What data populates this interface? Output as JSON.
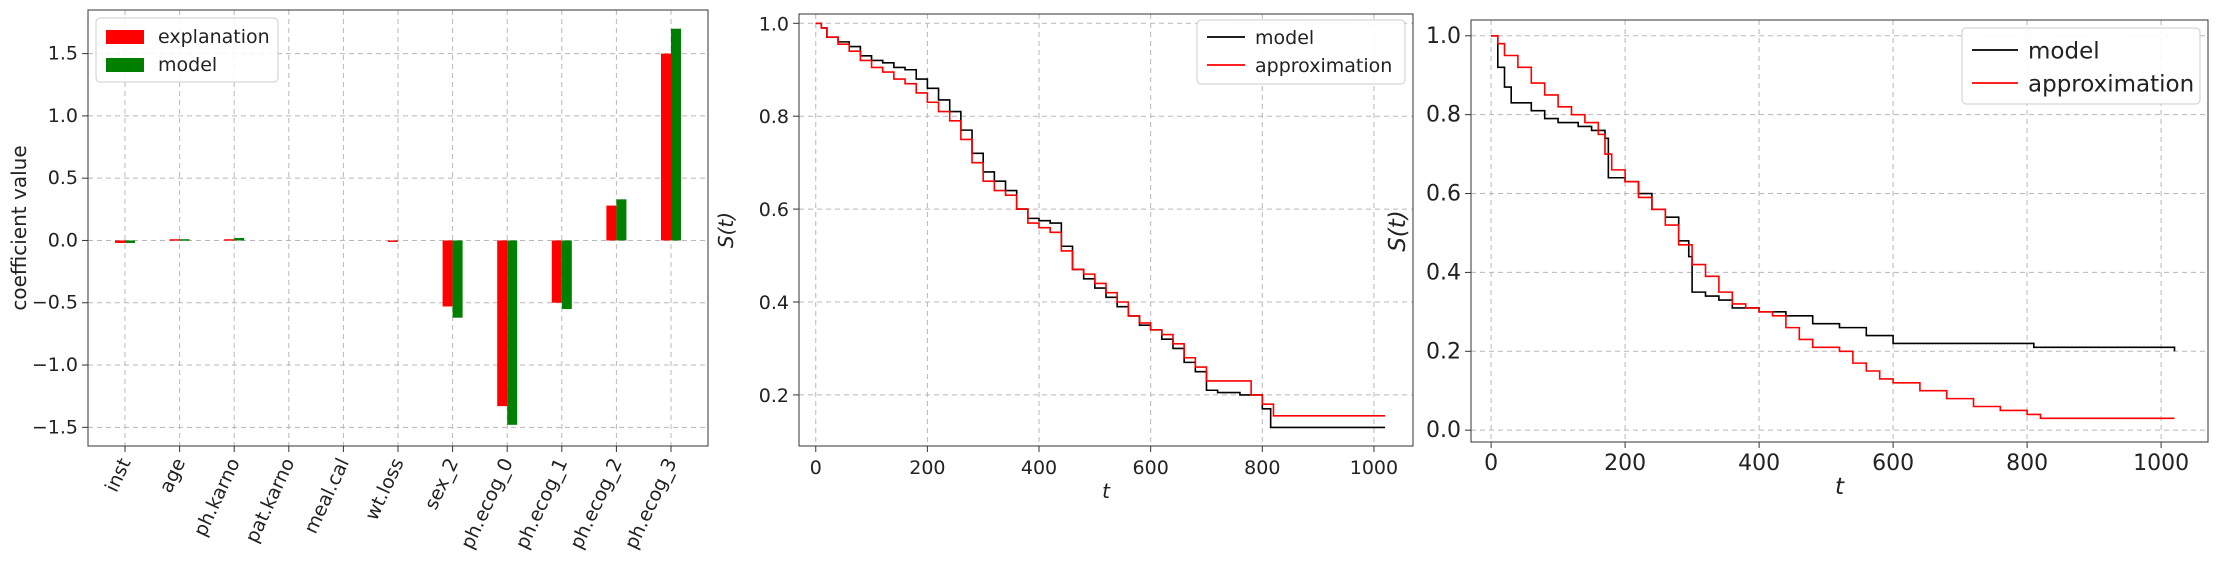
{
  "chart_data": [
    {
      "type": "bar",
      "ylabel": "coefficient value",
      "xlabel": "",
      "ylim": [
        -1.65,
        1.85
      ],
      "yticks": [
        "-1.5",
        "-1.0",
        "-0.5",
        "0.0",
        "0.5",
        "1.0",
        "1.5"
      ],
      "categories": [
        "inst",
        "age",
        "ph.karno",
        "pat.karno",
        "meal.cal",
        "wt.loss",
        "sex_2",
        "ph.ecog_0",
        "ph.ecog_1",
        "ph.ecog_2",
        "ph.ecog_3"
      ],
      "series": [
        {
          "name": "explanation",
          "color": "#ff0000",
          "values": [
            -0.02,
            0.01,
            0.01,
            0.0,
            0.0,
            -0.01,
            -0.53,
            -1.33,
            -0.5,
            0.28,
            1.5
          ]
        },
        {
          "name": "model",
          "color": "#008000",
          "values": [
            -0.02,
            0.01,
            0.02,
            0.0,
            0.0,
            0.0,
            -0.62,
            -1.48,
            -0.55,
            0.33,
            1.7
          ]
        }
      ],
      "legend": "top-left",
      "grid": true
    },
    {
      "type": "line",
      "xlabel": "t",
      "ylabel": "S(t)",
      "xlim": [
        -30,
        1070
      ],
      "ylim": [
        0.09,
        1.02
      ],
      "xticks": [
        "0",
        "200",
        "400",
        "600",
        "800",
        "1000"
      ],
      "yticks": [
        "0.2",
        "0.4",
        "0.6",
        "0.8",
        "1.0"
      ],
      "legend": "top-right",
      "grid": true,
      "series": [
        {
          "name": "model",
          "color": "#000000",
          "points": [
            [
              0,
              1.0
            ],
            [
              10,
              0.99
            ],
            [
              20,
              0.97
            ],
            [
              40,
              0.96
            ],
            [
              60,
              0.95
            ],
            [
              80,
              0.93
            ],
            [
              100,
              0.92
            ],
            [
              120,
              0.915
            ],
            [
              140,
              0.905
            ],
            [
              160,
              0.9
            ],
            [
              180,
              0.88
            ],
            [
              200,
              0.86
            ],
            [
              220,
              0.835
            ],
            [
              240,
              0.81
            ],
            [
              260,
              0.77
            ],
            [
              280,
              0.72
            ],
            [
              300,
              0.68
            ],
            [
              320,
              0.66
            ],
            [
              340,
              0.64
            ],
            [
              360,
              0.6
            ],
            [
              380,
              0.58
            ],
            [
              400,
              0.575
            ],
            [
              420,
              0.57
            ],
            [
              440,
              0.52
            ],
            [
              460,
              0.47
            ],
            [
              480,
              0.45
            ],
            [
              500,
              0.43
            ],
            [
              520,
              0.41
            ],
            [
              540,
              0.39
            ],
            [
              560,
              0.37
            ],
            [
              580,
              0.35
            ],
            [
              600,
              0.34
            ],
            [
              620,
              0.32
            ],
            [
              640,
              0.3
            ],
            [
              660,
              0.27
            ],
            [
              680,
              0.25
            ],
            [
              700,
              0.21
            ],
            [
              720,
              0.205
            ],
            [
              760,
              0.2
            ],
            [
              800,
              0.17
            ],
            [
              815,
              0.13
            ],
            [
              1020,
              0.13
            ]
          ]
        },
        {
          "name": "approximation",
          "color": "#ff0000",
          "points": [
            [
              0,
              1.0
            ],
            [
              10,
              0.99
            ],
            [
              20,
              0.97
            ],
            [
              40,
              0.955
            ],
            [
              60,
              0.94
            ],
            [
              80,
              0.92
            ],
            [
              100,
              0.905
            ],
            [
              120,
              0.895
            ],
            [
              140,
              0.88
            ],
            [
              160,
              0.87
            ],
            [
              180,
              0.85
            ],
            [
              200,
              0.83
            ],
            [
              220,
              0.81
            ],
            [
              240,
              0.79
            ],
            [
              260,
              0.75
            ],
            [
              280,
              0.7
            ],
            [
              300,
              0.66
            ],
            [
              320,
              0.64
            ],
            [
              340,
              0.63
            ],
            [
              360,
              0.6
            ],
            [
              380,
              0.57
            ],
            [
              400,
              0.56
            ],
            [
              420,
              0.55
            ],
            [
              440,
              0.51
            ],
            [
              460,
              0.47
            ],
            [
              480,
              0.46
            ],
            [
              500,
              0.44
            ],
            [
              520,
              0.42
            ],
            [
              540,
              0.4
            ],
            [
              560,
              0.37
            ],
            [
              580,
              0.355
            ],
            [
              600,
              0.34
            ],
            [
              620,
              0.33
            ],
            [
              640,
              0.31
            ],
            [
              660,
              0.28
            ],
            [
              680,
              0.26
            ],
            [
              700,
              0.23
            ],
            [
              760,
              0.23
            ],
            [
              780,
              0.2
            ],
            [
              800,
              0.18
            ],
            [
              820,
              0.155
            ],
            [
              1020,
              0.155
            ]
          ]
        }
      ]
    },
    {
      "type": "line",
      "xlabel": "t",
      "ylabel": "S(t)",
      "xlim": [
        -30,
        1070
      ],
      "ylim": [
        -0.03,
        1.04
      ],
      "xticks": [
        "0",
        "200",
        "400",
        "600",
        "800",
        "1000"
      ],
      "yticks": [
        "0.0",
        "0.2",
        "0.4",
        "0.6",
        "0.8",
        "1.0"
      ],
      "legend": "top-right",
      "grid": true,
      "series": [
        {
          "name": "model",
          "color": "#000000",
          "points": [
            [
              0,
              1.0
            ],
            [
              10,
              0.92
            ],
            [
              20,
              0.87
            ],
            [
              30,
              0.83
            ],
            [
              60,
              0.81
            ],
            [
              80,
              0.79
            ],
            [
              100,
              0.78
            ],
            [
              130,
              0.77
            ],
            [
              150,
              0.76
            ],
            [
              170,
              0.74
            ],
            [
              175,
              0.64
            ],
            [
              200,
              0.63
            ],
            [
              220,
              0.6
            ],
            [
              240,
              0.56
            ],
            [
              260,
              0.54
            ],
            [
              280,
              0.48
            ],
            [
              295,
              0.44
            ],
            [
              300,
              0.35
            ],
            [
              320,
              0.34
            ],
            [
              340,
              0.33
            ],
            [
              360,
              0.31
            ],
            [
              400,
              0.3
            ],
            [
              440,
              0.29
            ],
            [
              480,
              0.27
            ],
            [
              520,
              0.26
            ],
            [
              560,
              0.24
            ],
            [
              600,
              0.22
            ],
            [
              700,
              0.22
            ],
            [
              810,
              0.21
            ],
            [
              1020,
              0.2
            ]
          ]
        },
        {
          "name": "approximation",
          "color": "#ff0000",
          "points": [
            [
              0,
              1.0
            ],
            [
              10,
              0.98
            ],
            [
              20,
              0.95
            ],
            [
              40,
              0.92
            ],
            [
              60,
              0.88
            ],
            [
              80,
              0.85
            ],
            [
              100,
              0.82
            ],
            [
              120,
              0.8
            ],
            [
              140,
              0.78
            ],
            [
              160,
              0.75
            ],
            [
              170,
              0.7
            ],
            [
              180,
              0.66
            ],
            [
              200,
              0.63
            ],
            [
              220,
              0.59
            ],
            [
              240,
              0.56
            ],
            [
              260,
              0.52
            ],
            [
              280,
              0.47
            ],
            [
              300,
              0.42
            ],
            [
              320,
              0.39
            ],
            [
              340,
              0.35
            ],
            [
              360,
              0.32
            ],
            [
              380,
              0.31
            ],
            [
              400,
              0.3
            ],
            [
              420,
              0.29
            ],
            [
              440,
              0.26
            ],
            [
              460,
              0.23
            ],
            [
              480,
              0.21
            ],
            [
              520,
              0.2
            ],
            [
              540,
              0.17
            ],
            [
              560,
              0.15
            ],
            [
              580,
              0.13
            ],
            [
              600,
              0.12
            ],
            [
              640,
              0.1
            ],
            [
              680,
              0.08
            ],
            [
              720,
              0.06
            ],
            [
              760,
              0.05
            ],
            [
              800,
              0.04
            ],
            [
              820,
              0.03
            ],
            [
              1020,
              0.03
            ]
          ]
        }
      ]
    }
  ]
}
